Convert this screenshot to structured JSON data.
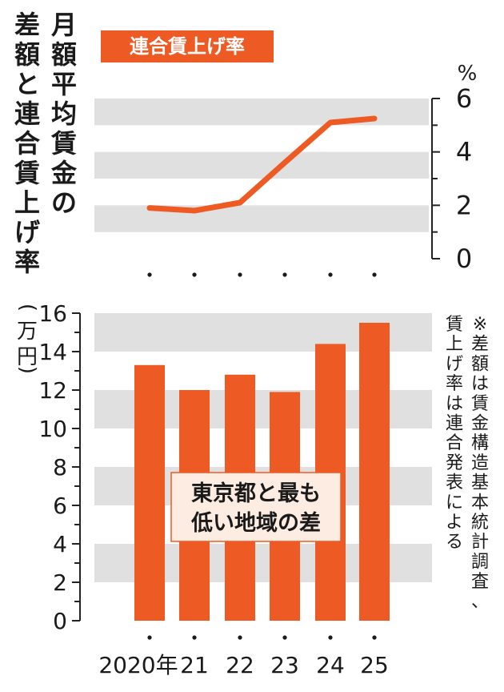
{
  "vertical_title": [
    "月",
    "額",
    "平",
    "均",
    "賃",
    "金",
    "の",
    "差",
    "額",
    "と",
    "連",
    "合",
    "賃",
    "上",
    "げ",
    "率"
  ],
  "unit_upper": "%",
  "unit_lower": [
    "万",
    "円"
  ],
  "note": [
    "※差額は賃金構造基本統計調査、",
    "賃上げ率は連合発表による"
  ],
  "colors": {
    "accent": "#ee5a24",
    "band": "#e0e0e0",
    "axis": "#222222"
  },
  "chart_data": [
    {
      "type": "line",
      "title": "連合賃上げ率",
      "x": [
        "2020年",
        "21",
        "22",
        "23",
        "24",
        "25"
      ],
      "series": [
        {
          "name": "連合賃上げ率",
          "values": [
            1.9,
            1.8,
            2.1,
            3.6,
            5.1,
            5.25
          ]
        }
      ],
      "ylim": [
        0,
        6
      ],
      "yticks": [
        "0",
        "2",
        "4",
        "6"
      ],
      "ylabel": "%",
      "grid": "alternating bands"
    },
    {
      "type": "bar",
      "title": "東京都と最も低い地域の差",
      "categories": [
        "2020年",
        "21",
        "22",
        "23",
        "24",
        "25"
      ],
      "values": [
        13.3,
        12.0,
        12.8,
        11.9,
        14.4,
        15.5
      ],
      "ylim": [
        0,
        16
      ],
      "yticks": [
        "0",
        "2",
        "4",
        "6",
        "8",
        "10",
        "12",
        "14",
        "16"
      ],
      "ylabel": "万円",
      "grid": "alternating bands"
    }
  ]
}
